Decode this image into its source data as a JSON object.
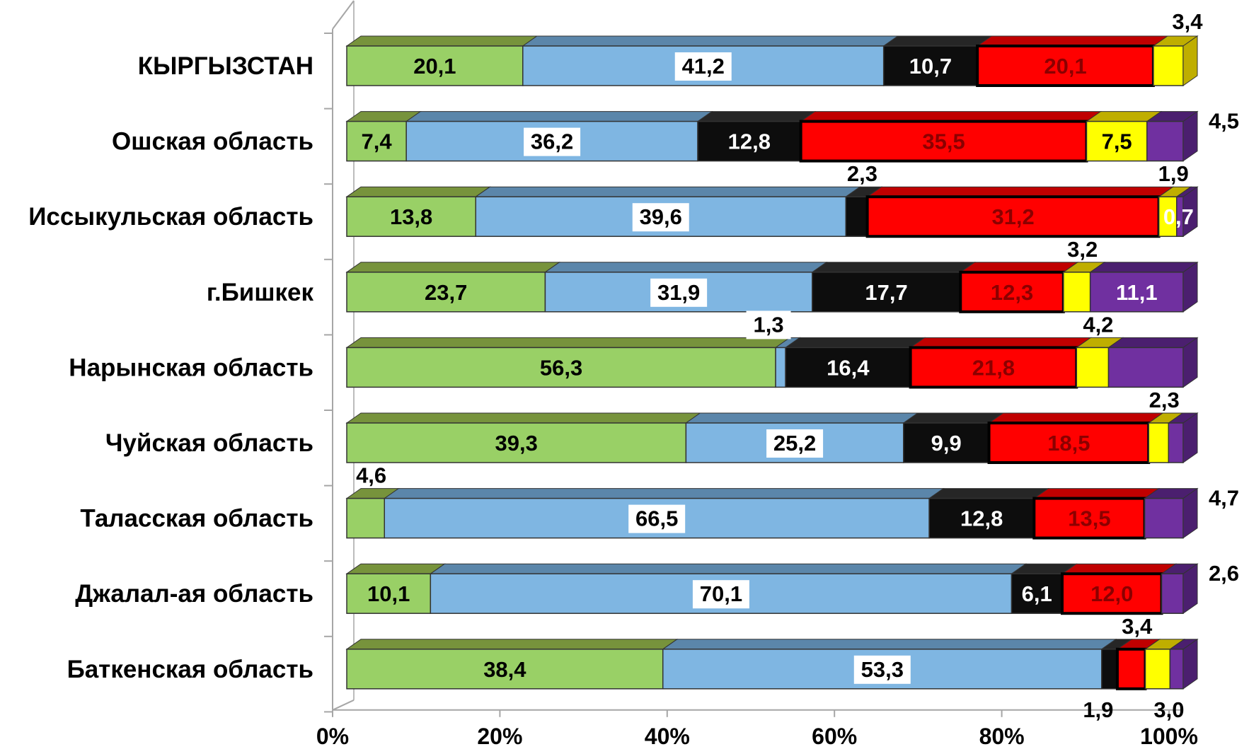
{
  "chart_data": {
    "type": "bar",
    "orientation": "horizontal",
    "stacked": "100%",
    "grid": false,
    "legend": "none",
    "categories": [
      "КЫРГЫЗСТАН",
      "Ошская область",
      "Иссыкульская область",
      "г.Бишкек",
      "Нарынская область",
      "Чуйская область",
      "Таласская область",
      "Джалал-ая область",
      "Баткенская область"
    ],
    "xlim": [
      0,
      100
    ],
    "xticks": [
      "0%",
      "20%",
      "40%",
      "60%",
      "80%",
      "100%"
    ],
    "series": [
      {
        "color": "#99d066",
        "top_color": "#77933c",
        "values": [
          20.1,
          7.4,
          13.8,
          23.7,
          56.3,
          39.3,
          4.6,
          10.1,
          38.4
        ],
        "labels": [
          "20,1",
          "7,4",
          "13,8",
          "23,7",
          "56,3",
          "39,3",
          "4,6",
          "10,1",
          "38,4"
        ]
      },
      {
        "color": "#7fb6e2",
        "top_color": "#5b86aa",
        "values": [
          41.2,
          36.2,
          39.6,
          31.9,
          1.3,
          25.2,
          66.5,
          70.1,
          53.3
        ],
        "labels": [
          "41,2",
          "36,2",
          "39,6",
          "31,9",
          "1,3",
          "25,2",
          "66,5",
          "70,1",
          "53,3"
        ]
      },
      {
        "color": "#0d0d0d",
        "top_color": "#262626",
        "values": [
          10.7,
          12.8,
          2.3,
          17.7,
          16.4,
          9.9,
          12.8,
          6.1,
          1.9
        ],
        "labels": [
          "10,7",
          "12,8",
          "2,3",
          "17,7",
          "16,4",
          "9,9",
          "12,8",
          "6,1",
          "1,9"
        ]
      },
      {
        "color": "#ff0000",
        "top_color": "#c00000",
        "values": [
          20.1,
          35.5,
          31.2,
          12.3,
          21.8,
          18.5,
          13.5,
          12.0,
          3.4
        ],
        "labels": [
          "20,1",
          "35,5",
          "31,2",
          "12,3",
          "21,8",
          "18,5",
          "13,5",
          "12,0",
          "3,4"
        ]
      },
      {
        "color": "#ffff00",
        "top_color": "#bfae00",
        "values": [
          3.4,
          7.5,
          1.9,
          3.2,
          4.2,
          2.3,
          0,
          0,
          3.0
        ],
        "labels": [
          "3,4",
          "7,5",
          "1,9",
          "3,2",
          "4,2",
          "2,3",
          "",
          "",
          "3,0"
        ]
      },
      {
        "color": "#7030a0",
        "top_color": "#4b1f6f",
        "values": [
          0,
          4.5,
          0.7,
          11.1,
          9.8,
          1.7,
          4.7,
          2.6,
          1.6
        ],
        "labels": [
          "",
          "4,5",
          "0,7",
          "11,1",
          "",
          "",
          "4,7",
          "2,6",
          ""
        ]
      }
    ]
  }
}
